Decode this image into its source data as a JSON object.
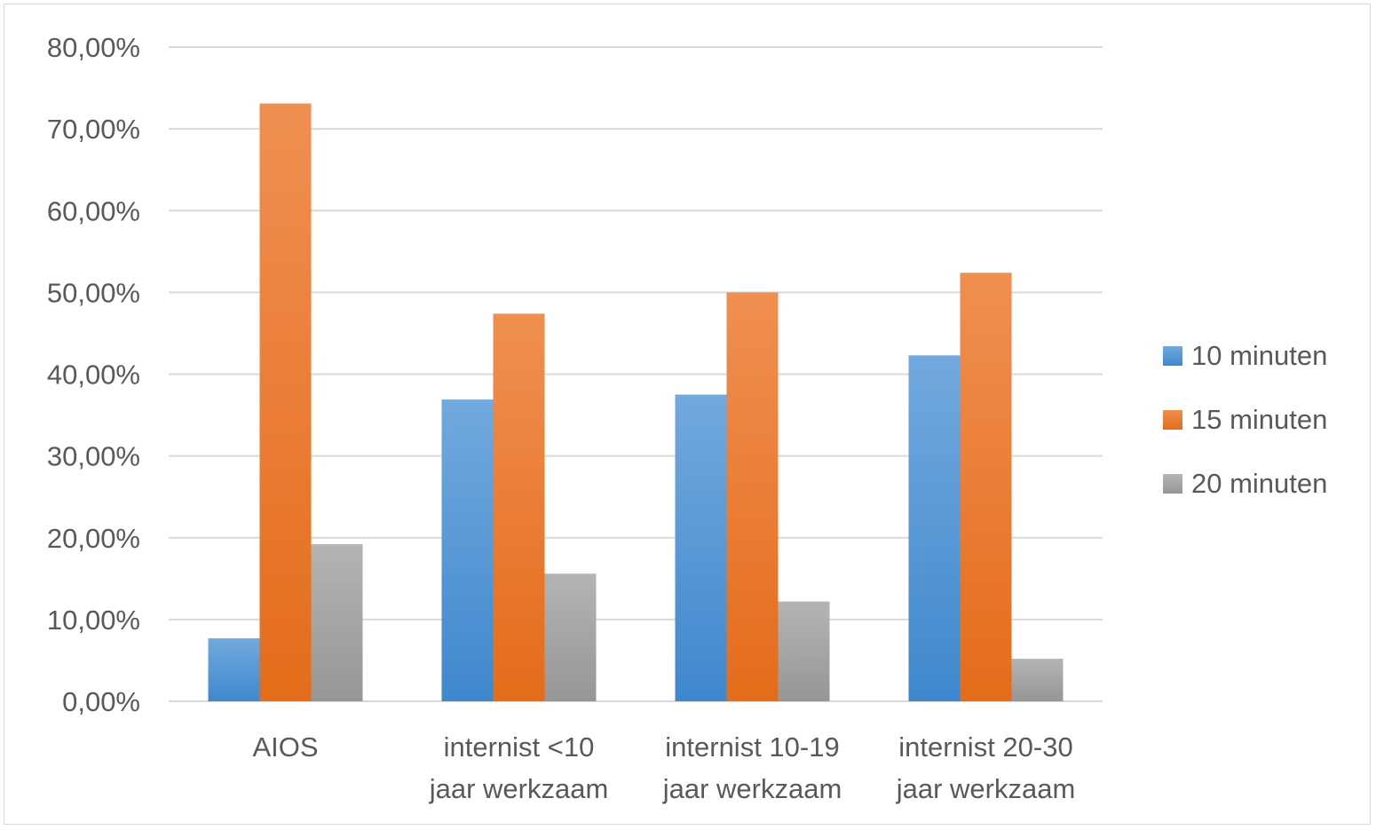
{
  "chart_data": {
    "type": "bar",
    "categories": [
      [
        "AIOS"
      ],
      [
        "internist <10",
        "jaar werkzaam"
      ],
      [
        "internist 10-19",
        "jaar werkzaam"
      ],
      [
        "internist 20-30",
        "jaar werkzaam"
      ]
    ],
    "series": [
      {
        "name": "10 minuten",
        "color": "#5b9bd5",
        "values": [
          7.7,
          36.9,
          37.5,
          42.3
        ]
      },
      {
        "name": "15 minuten",
        "color": "#ed7d31",
        "values": [
          73.1,
          47.4,
          50.0,
          52.4
        ]
      },
      {
        "name": "20 minuten",
        "color": "#a5a5a5",
        "values": [
          19.2,
          15.6,
          12.2,
          5.2
        ]
      }
    ],
    "ylim": [
      0,
      80
    ],
    "yticks": [
      "0,00%",
      "10,00%",
      "20,00%",
      "30,00%",
      "40,00%",
      "50,00%",
      "60,00%",
      "70,00%",
      "80,00%"
    ],
    "title": "",
    "xlabel": "",
    "ylabel": "",
    "grid": true,
    "legend_position": "right"
  }
}
